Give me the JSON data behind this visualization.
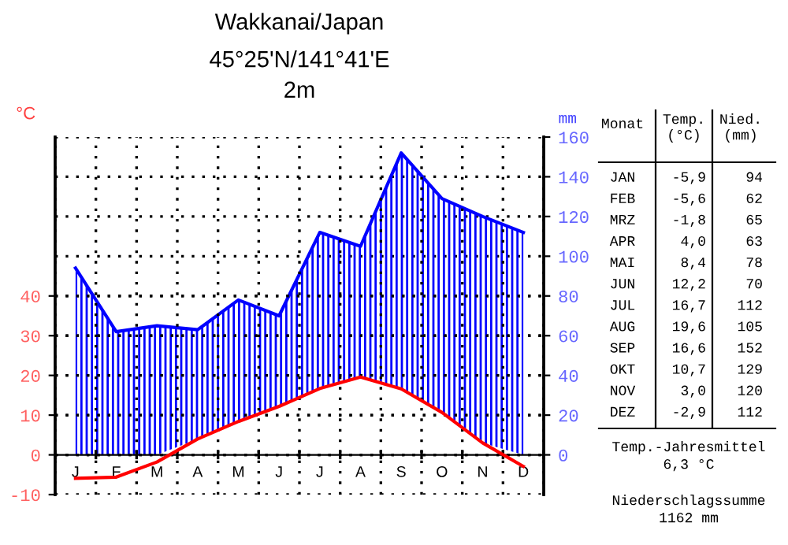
{
  "chart_data": {
    "type": "line",
    "title": "Wakkanai/Japan",
    "subtitle": "45°25'N/141°41'E\n2m",
    "ylabel": "°C",
    "y2label": "mm",
    "categories": [
      "J",
      "F",
      "M",
      "A",
      "M",
      "J",
      "J",
      "A",
      "S",
      "O",
      "N",
      "D"
    ],
    "series": [
      {
        "color": "#ff0000",
        "values": [
          -5.9,
          -5.6,
          -1.8,
          4.0,
          8.4,
          12.2,
          16.7,
          19.6,
          16.6,
          10.7,
          3.0,
          -2.9
        ]
      },
      {
        "type": "area",
        "axis": "y2",
        "color": "#0000ff",
        "values": [
          94,
          62,
          65,
          63,
          78,
          70,
          112,
          105,
          152,
          129,
          120,
          112
        ]
      }
    ],
    "ylim": [
      -10,
      80
    ],
    "yticks": [
      -10,
      0,
      10,
      20,
      30,
      40
    ],
    "y2lim": [
      -20,
      160
    ],
    "y2ticks": [
      0,
      20,
      40,
      60,
      80,
      100,
      120,
      140,
      160
    ],
    "grid": true,
    "marker": "none",
    "line_style": "solid",
    "annotations": [
      "Monat",
      "Temp.\n(°C)",
      "Nied.\n(mm)",
      "JAN",
      "FEB",
      "MRZ",
      "APR",
      "MAI",
      "JUN",
      "JUL",
      "AUG",
      "SEP",
      "OKT",
      "NOV",
      "DEZ",
      "-5,9",
      "-5,6",
      "-1,8",
      "4,0",
      "8,4",
      "12,2",
      "16,7",
      "19,6",
      "16,6",
      "10,7",
      "3,0",
      "-2,9",
      "94",
      "62",
      "65",
      "63",
      "78",
      "70",
      "112",
      "105",
      "152",
      "129",
      "120",
      "112",
      "Temp.-Jahresmittel\n6,3 °C",
      "Niederschlagssumme\n1162 mm"
    ]
  }
}
